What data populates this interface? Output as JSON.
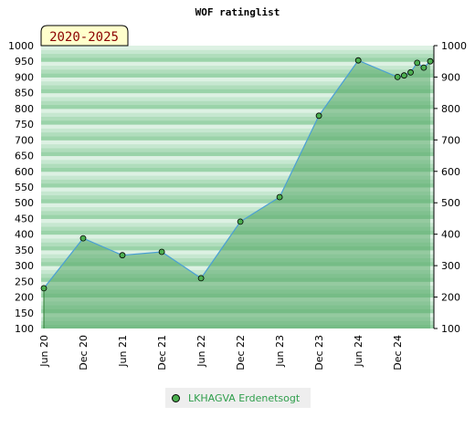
{
  "chart_data": {
    "type": "area",
    "title": "WOF ratinglist",
    "period_label": "2020-2025",
    "ylim": [
      100,
      1000
    ],
    "y_ticks": [
      100,
      150,
      200,
      250,
      300,
      350,
      400,
      450,
      500,
      550,
      600,
      650,
      700,
      750,
      800,
      850,
      900,
      950,
      1000
    ],
    "y_ticks_right": [
      100,
      200,
      300,
      400,
      500,
      600,
      700,
      800,
      900,
      1000
    ],
    "x_ticks": [
      "Jun 20",
      "Dec 20",
      "Jun 21",
      "Dec 21",
      "Jun 22",
      "Dec 22",
      "Jun 23",
      "Dec 23",
      "Jun 24",
      "Dec 24"
    ],
    "legend_position": "bottom",
    "series": [
      {
        "name": "LKHAGVA Erdenetsogt",
        "color": "#5aaa6a",
        "line_color": "#4a9fd6",
        "x": [
          "2020-06",
          "2020-12",
          "2021-06",
          "2021-12",
          "2022-06",
          "2022-12",
          "2023-06",
          "2023-12",
          "2024-06",
          "2024-12",
          "2025-01",
          "2025-02",
          "2025-03",
          "2025-04",
          "2025-05"
        ],
        "values": [
          228,
          387,
          333,
          344,
          260,
          440,
          518,
          777,
          953,
          900,
          905,
          915,
          945,
          930,
          950
        ]
      }
    ]
  }
}
